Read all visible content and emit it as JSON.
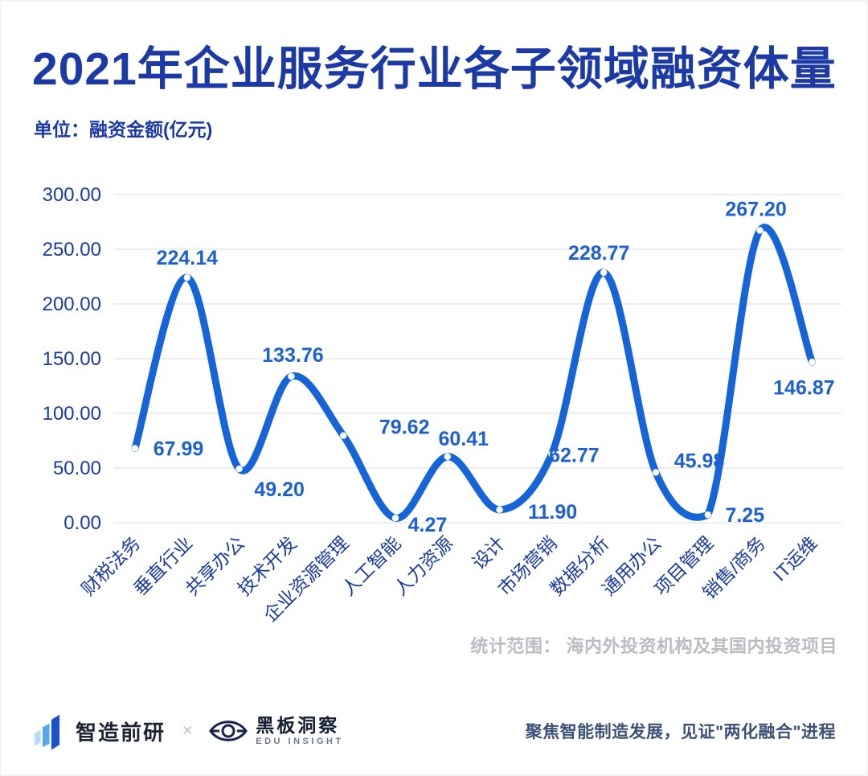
{
  "title": "2021年企业服务行业各子领域融资体量",
  "unit_label": "单位：融资金额(亿元)",
  "chart_data": {
    "type": "line",
    "title": "2021年企业服务行业各子领域融资体量",
    "ylabel": "融资金额(亿元)",
    "categories": [
      "财税法务",
      "垂直行业",
      "共享办公",
      "技术开发",
      "企业资源管理",
      "人工智能",
      "人力资源",
      "设计",
      "市场营销",
      "数据分析",
      "通用办公",
      "项目管理",
      "销售/商务",
      "IT运维"
    ],
    "values": [
      67.99,
      224.14,
      49.2,
      133.76,
      79.62,
      4.27,
      60.41,
      11.9,
      62.77,
      228.77,
      45.98,
      7.25,
      267.2,
      146.87
    ],
    "value_labels": [
      "67.99",
      "224.14",
      "49.20",
      "133.76",
      "79.62",
      "4.27",
      "60.41",
      "11.90",
      "62.77",
      "228.77",
      "45.98",
      "7.25",
      "267.20",
      "146.87"
    ],
    "ylim": [
      0,
      300
    ],
    "ytick_step": 50,
    "yticks": [
      "300.00",
      "250.00",
      "200.00",
      "150.00",
      "100.00",
      "50.00",
      "0.00"
    ],
    "grid": true,
    "line_color": "#1565d8",
    "point_dot_color": "#ffffff",
    "value_label_color": "#1d60d4",
    "axis_label_color": "#1b3c9c",
    "grid_color": "#e9e9e9"
  },
  "footnote": "统计范围： 海内外投资机构及其国内投资项目",
  "footer": {
    "brand1": "智造前研",
    "collab_symbol": "✕",
    "brand2": "黑板洞察",
    "brand2_sub": "EDU INSIGHT",
    "tagline": "聚焦智能制造发展，见证\"两化融合\"进程"
  }
}
